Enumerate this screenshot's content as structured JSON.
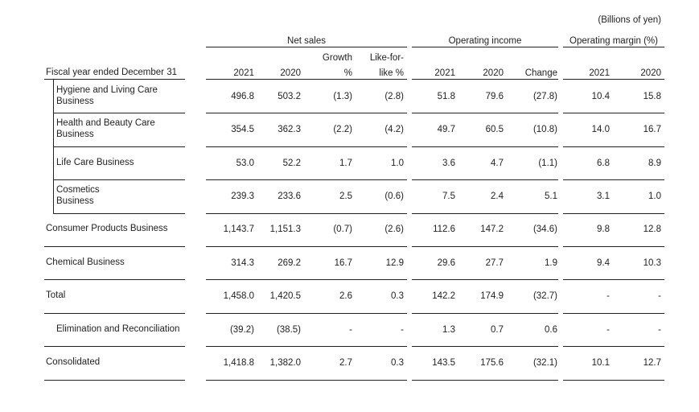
{
  "units": "(Billions of yen)",
  "groups": {
    "net_sales": "Net sales",
    "operating_income": "Operating income",
    "operating_margin": "Operating margin (%)"
  },
  "header": {
    "row_label": "Fiscal year ended December 31",
    "growth_line1": "Growth",
    "growth_line2": "%",
    "lfl_line1": "Like-for-",
    "lfl_line2": "like %",
    "change": "Change",
    "year_2021": "2021",
    "year_2020": "2020"
  },
  "rows": [
    {
      "label": [
        "Hygiene and Living Care",
        "Business"
      ],
      "values": [
        "496.8",
        "503.2",
        "(1.3)",
        "(2.8)",
        "51.8",
        "79.6",
        "(27.8)",
        "10.4",
        "15.8"
      ]
    },
    {
      "label": [
        "Health and Beauty Care",
        "Business"
      ],
      "values": [
        "354.5",
        "362.3",
        "(2.2)",
        "(4.2)",
        "49.7",
        "60.5",
        "(10.8)",
        "14.0",
        "16.7"
      ]
    },
    {
      "label": [
        "Life Care Business"
      ],
      "values": [
        "53.0",
        "52.2",
        "1.7",
        "1.0",
        "3.6",
        "4.7",
        "(1.1)",
        "6.8",
        "8.9"
      ]
    },
    {
      "label": [
        "Cosmetics",
        "Business"
      ],
      "values": [
        "239.3",
        "233.6",
        "2.5",
        "(0.6)",
        "7.5",
        "2.4",
        "5.1",
        "3.1",
        "1.0"
      ]
    },
    {
      "label": [
        "Consumer Products Business"
      ],
      "values": [
        "1,143.7",
        "1,151.3",
        "(0.7)",
        "(2.6)",
        "112.6",
        "147.2",
        "(34.6)",
        "9.8",
        "12.8"
      ]
    },
    {
      "label": [
        "Chemical Business"
      ],
      "values": [
        "314.3",
        "269.2",
        "16.7",
        "12.9",
        "29.6",
        "27.7",
        "1.9",
        "9.4",
        "10.3"
      ]
    },
    {
      "label": [
        "Total"
      ],
      "values": [
        "1,458.0",
        "1,420.5",
        "2.6",
        "0.3",
        "142.2",
        "174.9",
        "(32.7)",
        "-",
        "-"
      ]
    },
    {
      "label": [
        "Elimination and Reconciliation"
      ],
      "values": [
        "(39.2)",
        "(38.5)",
        "-",
        "-",
        "1.3",
        "0.7",
        "0.6",
        "-",
        "-"
      ]
    },
    {
      "label": [
        "Consolidated"
      ],
      "values": [
        "1,418.8",
        "1,382.0",
        "2.7",
        "0.3",
        "143.5",
        "175.6",
        "(32.1)",
        "10.1",
        "12.7"
      ]
    }
  ]
}
